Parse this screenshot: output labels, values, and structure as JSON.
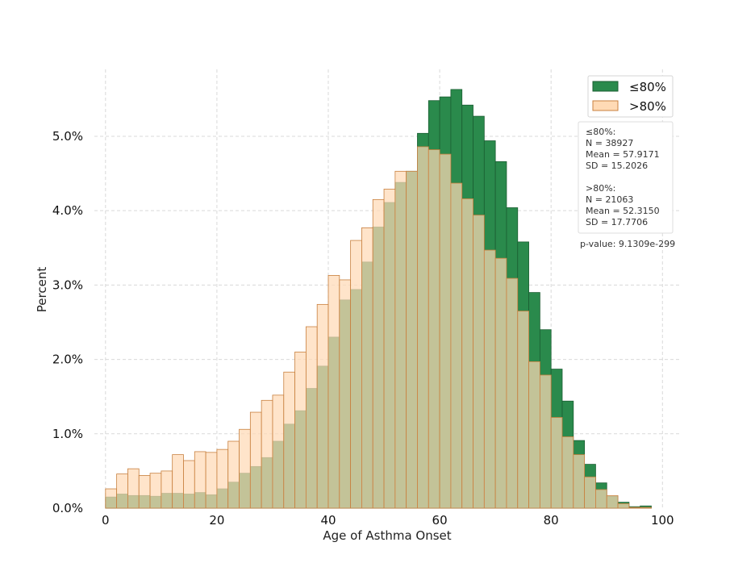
{
  "chart_data": {
    "type": "histogram",
    "xlabel": "Age of Asthma Onset",
    "ylabel": "Percent",
    "xlim": [
      -2,
      103
    ],
    "ylim": [
      0,
      0.059
    ],
    "x_ticks": [
      0,
      20,
      40,
      60,
      80,
      100
    ],
    "y_ticks": [
      0,
      0.01,
      0.02,
      0.03,
      0.04,
      0.05
    ],
    "y_tick_labels": [
      "0.0%",
      "1.0%",
      "2.0%",
      "3.0%",
      "4.0%",
      "5.0%"
    ],
    "bin_width": 2,
    "bin_starts": [
      0,
      2,
      4,
      6,
      8,
      10,
      12,
      14,
      16,
      18,
      20,
      22,
      24,
      26,
      28,
      30,
      32,
      34,
      36,
      38,
      40,
      42,
      44,
      46,
      48,
      50,
      52,
      54,
      56,
      58,
      60,
      62,
      64,
      66,
      68,
      70,
      72,
      74,
      76,
      78,
      80,
      82,
      84,
      86,
      88,
      90,
      92,
      94,
      96
    ],
    "grid": true,
    "legend_position": "top-right",
    "series": [
      {
        "name": "≤80%",
        "color": "#2a8a4c",
        "edge_color": "#1b5e32",
        "values": [
          0.0015,
          0.0019,
          0.0017,
          0.0017,
          0.0016,
          0.002,
          0.002,
          0.0019,
          0.0021,
          0.0018,
          0.0026,
          0.0035,
          0.0047,
          0.0056,
          0.0068,
          0.009,
          0.0113,
          0.0131,
          0.0161,
          0.0191,
          0.023,
          0.028,
          0.0294,
          0.0331,
          0.0378,
          0.0411,
          0.0438,
          0.0453,
          0.0504,
          0.0548,
          0.0553,
          0.0563,
          0.0542,
          0.0527,
          0.0494,
          0.0466,
          0.0404,
          0.0358,
          0.029,
          0.024,
          0.0187,
          0.0144,
          0.0091,
          0.0059,
          0.0034,
          0.0016,
          0.0008,
          0.0002,
          0.0003
        ]
      },
      {
        "name": ">80%",
        "color": "#ffdab5",
        "edge_color": "#c8803f",
        "values": [
          0.0026,
          0.0046,
          0.0053,
          0.0044,
          0.0047,
          0.005,
          0.0072,
          0.0064,
          0.0076,
          0.0075,
          0.0079,
          0.009,
          0.0106,
          0.0129,
          0.0145,
          0.0152,
          0.0183,
          0.021,
          0.0244,
          0.0274,
          0.0313,
          0.0307,
          0.036,
          0.0377,
          0.0415,
          0.0429,
          0.0453,
          0.0453,
          0.0486,
          0.0482,
          0.0476,
          0.0437,
          0.0416,
          0.0394,
          0.0347,
          0.0336,
          0.0309,
          0.0265,
          0.0197,
          0.0179,
          0.0122,
          0.0096,
          0.0072,
          0.0042,
          0.0025,
          0.0017,
          0.0006,
          0.0001,
          0.0001
        ]
      }
    ],
    "stats_box": {
      "group1_title": "≤80%:",
      "group1_n": "N =  38927",
      "group1_mean": "Mean =  57.9171",
      "group1_sd": "SD =  15.2026",
      "group2_title": ">80%:",
      "group2_n": "N =  21063",
      "group2_mean": "Mean =  52.3150",
      "group2_sd": "SD =  17.7706"
    },
    "p_value_text": "p-value: 9.1309e-299"
  }
}
